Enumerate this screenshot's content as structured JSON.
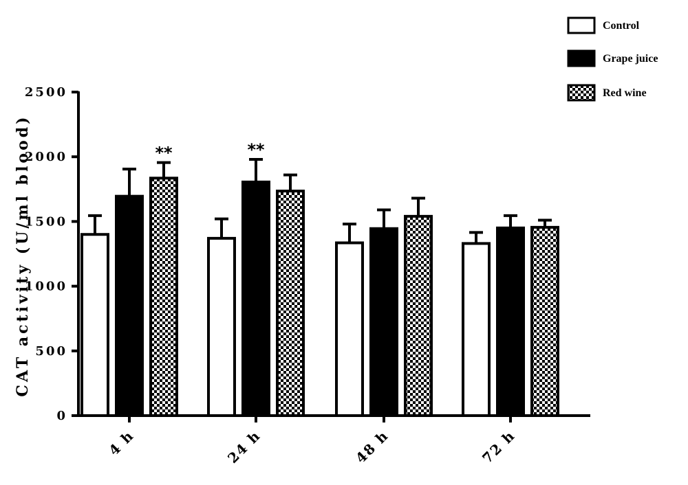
{
  "chart_data": {
    "type": "bar",
    "title": "",
    "xlabel": "",
    "ylabel": "CAT activity (U/ml blood)",
    "categories": [
      "4 h",
      "24 h",
      "48 h",
      "72 h"
    ],
    "ylim": [
      0,
      2500
    ],
    "yticks": [
      0,
      500,
      1000,
      1500,
      2000,
      2500
    ],
    "yticks_labels": [
      "0",
      "500",
      "1000",
      "1500",
      "2000",
      "2500"
    ],
    "grid": false,
    "legend_position": "top-right",
    "series": [
      {
        "name": "Control",
        "fill": "white",
        "values": [
          1400,
          1370,
          1335,
          1330
        ],
        "errors": [
          145,
          150,
          145,
          85
        ]
      },
      {
        "name": "Grape juice",
        "fill": "black",
        "values": [
          1695,
          1805,
          1445,
          1450
        ],
        "errors": [
          210,
          175,
          145,
          95
        ]
      },
      {
        "name": "Red wine",
        "fill": "checker",
        "values": [
          1835,
          1735,
          1540,
          1455
        ],
        "errors": [
          120,
          125,
          140,
          55
        ]
      }
    ],
    "annotations": [
      {
        "category_index": 0,
        "series_index": 2,
        "text": "**"
      },
      {
        "category_index": 1,
        "series_index": 1,
        "text": "**"
      }
    ]
  }
}
